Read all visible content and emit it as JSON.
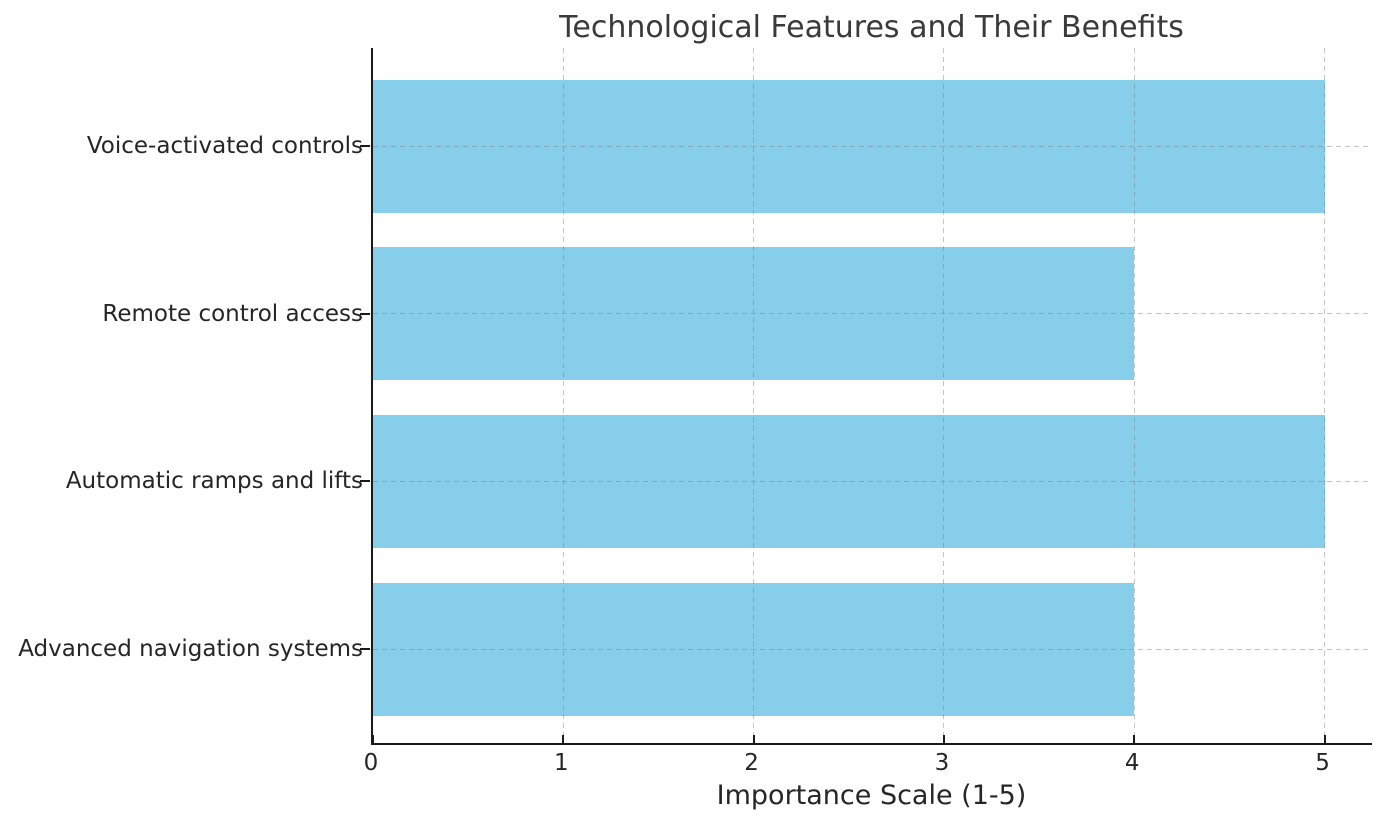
{
  "chart_data": {
    "type": "bar",
    "orientation": "horizontal",
    "title": "Technological Features and Their Benefits",
    "categories": [
      "Voice-activated controls",
      "Remote control access",
      "Automatic ramps and lifts",
      "Advanced navigation systems"
    ],
    "values": [
      5,
      4,
      5,
      4
    ],
    "xlabel": "Importance Scale (1-5)",
    "ylabel": "",
    "xticks": [
      0,
      1,
      2,
      3,
      4,
      5
    ],
    "xlim": [
      0,
      5.26
    ],
    "grid": true,
    "grid_style": "dashed",
    "legend": "none",
    "colors": {
      "bar": "#87CEEB",
      "grid": "#c9c9c9",
      "spine": "#1a1a1a",
      "title_text": "#3a3a3a",
      "label_text": "#262626"
    }
  }
}
